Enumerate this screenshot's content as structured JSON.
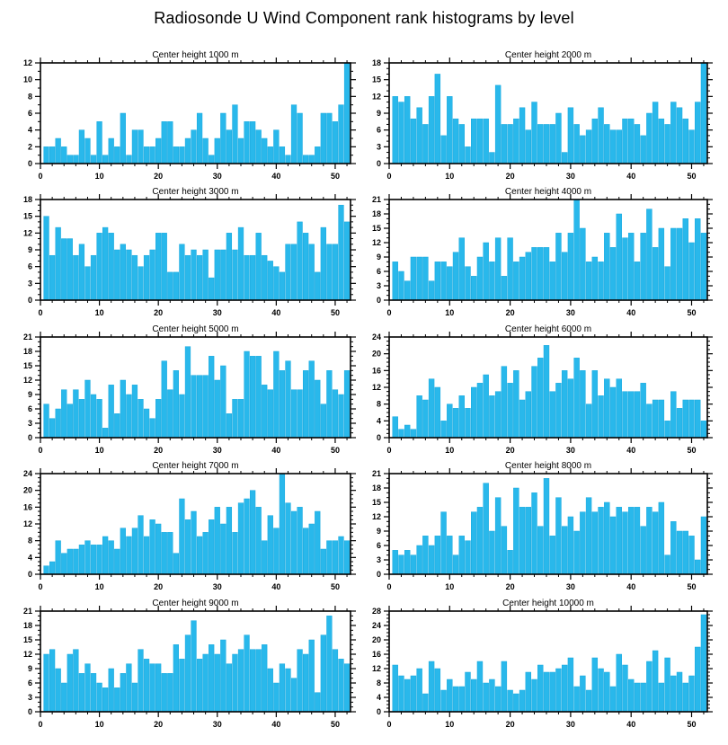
{
  "page_title": "Radiosonde U Wind Component rank histograms by level",
  "colors": {
    "bar": "#29B8EB",
    "bar_edge": "#18A8DE",
    "axis": "#000000",
    "background": "#FFFFFF"
  },
  "axis_style": {
    "x_major_ticks": [
      0,
      10,
      20,
      30,
      40,
      50
    ],
    "x_minor_step": 2,
    "y_minor_step": 1,
    "x_range": [
      0,
      52.6
    ],
    "grid": "off",
    "legend": "none"
  },
  "chart_data": [
    {
      "type": "bar",
      "title": "Center height 1000 m",
      "ylim": [
        0,
        12
      ],
      "ytick_step": 2,
      "x_ticks": [
        0,
        10,
        20,
        30,
        40,
        50
      ],
      "values": [
        2,
        2,
        3,
        2,
        1,
        1,
        4,
        3,
        1,
        5,
        1,
        3,
        2,
        6,
        1,
        4,
        4,
        2,
        2,
        3,
        5,
        5,
        2,
        2,
        3,
        4,
        6,
        3,
        1,
        3,
        6,
        4,
        7,
        3,
        5,
        5,
        4,
        3,
        2,
        4,
        2,
        1,
        7,
        6,
        1,
        1,
        2,
        6,
        6,
        5,
        7,
        12
      ]
    },
    {
      "type": "bar",
      "title": "Center height 2000 m",
      "ylim": [
        0,
        18
      ],
      "ytick_step": 3,
      "x_ticks": [
        0,
        10,
        20,
        30,
        40,
        50
      ],
      "values": [
        12,
        11,
        12,
        8,
        10,
        7,
        12,
        16,
        5,
        12,
        8,
        7,
        3,
        8,
        8,
        8,
        2,
        14,
        7,
        7,
        8,
        10,
        6,
        11,
        7,
        7,
        7,
        9,
        2,
        10,
        7,
        5,
        6,
        8,
        10,
        7,
        6,
        6,
        8,
        8,
        7,
        5,
        9,
        11,
        8,
        7,
        11,
        10,
        8,
        6,
        11,
        18
      ]
    },
    {
      "type": "bar",
      "title": "Center height 3000 m",
      "ylim": [
        0,
        18
      ],
      "ytick_step": 3,
      "x_ticks": [
        0,
        10,
        20,
        30,
        40,
        50
      ],
      "values": [
        15,
        8,
        13,
        11,
        11,
        8,
        10,
        6,
        8,
        12,
        13,
        12,
        9,
        10,
        9,
        8,
        6,
        8,
        9,
        12,
        12,
        5,
        5,
        10,
        8,
        9,
        8,
        9,
        4,
        9,
        9,
        12,
        9,
        13,
        8,
        8,
        12,
        8,
        7,
        6,
        5,
        10,
        10,
        14,
        12,
        10,
        5,
        13,
        10,
        10,
        17,
        14
      ]
    },
    {
      "type": "bar",
      "title": "Center height 4000 m",
      "ylim": [
        0,
        21
      ],
      "ytick_step": 3,
      "x_ticks": [
        0,
        10,
        20,
        30,
        40,
        50
      ],
      "values": [
        8,
        6,
        4,
        9,
        9,
        9,
        4,
        8,
        8,
        7,
        10,
        13,
        7,
        5,
        9,
        12,
        8,
        13,
        5,
        13,
        8,
        9,
        10,
        11,
        11,
        11,
        8,
        14,
        10,
        14,
        21,
        15,
        8,
        9,
        8,
        14,
        11,
        18,
        13,
        14,
        8,
        14,
        19,
        11,
        15,
        7,
        15,
        15,
        17,
        12,
        17,
        14
      ]
    },
    {
      "type": "bar",
      "title": "Center height 5000 m",
      "ylim": [
        0,
        21
      ],
      "ytick_step": 3,
      "x_ticks": [
        0,
        10,
        20,
        30,
        40,
        50
      ],
      "values": [
        7,
        4,
        6,
        10,
        7,
        10,
        8,
        12,
        9,
        8,
        2,
        11,
        5,
        12,
        9,
        11,
        8,
        6,
        4,
        8,
        16,
        10,
        14,
        9,
        19,
        13,
        13,
        13,
        17,
        12,
        15,
        5,
        8,
        8,
        18,
        17,
        17,
        11,
        10,
        18,
        14,
        16,
        10,
        10,
        14,
        16,
        12,
        7,
        14,
        10,
        9,
        14
      ]
    },
    {
      "type": "bar",
      "title": "Center height 6000 m",
      "ylim": [
        0,
        24
      ],
      "ytick_step": 4,
      "x_ticks": [
        0,
        10,
        20,
        30,
        40,
        50
      ],
      "values": [
        5,
        2,
        3,
        2,
        10,
        9,
        14,
        12,
        4,
        8,
        7,
        10,
        7,
        12,
        13,
        15,
        10,
        11,
        17,
        13,
        16,
        9,
        11,
        17,
        19,
        22,
        11,
        13,
        16,
        14,
        19,
        16,
        8,
        16,
        10,
        14,
        12,
        14,
        11,
        11,
        11,
        13,
        8,
        9,
        9,
        4,
        11,
        7,
        9,
        9,
        9,
        4
      ]
    },
    {
      "type": "bar",
      "title": "Center height 7000 m",
      "ylim": [
        0,
        24
      ],
      "ytick_step": 4,
      "x_ticks": [
        0,
        10,
        20,
        30,
        40,
        50
      ],
      "values": [
        2,
        3,
        8,
        5,
        6,
        6,
        7,
        8,
        7,
        7,
        9,
        8,
        6,
        11,
        9,
        11,
        14,
        9,
        13,
        12,
        10,
        10,
        5,
        18,
        13,
        15,
        9,
        10,
        13,
        16,
        12,
        16,
        10,
        17,
        18,
        20,
        16,
        8,
        14,
        11,
        24,
        17,
        15,
        16,
        11,
        12,
        15,
        6,
        8,
        8,
        9,
        8
      ]
    },
    {
      "type": "bar",
      "title": "Center height 8000 m",
      "ylim": [
        0,
        21
      ],
      "ytick_step": 3,
      "x_ticks": [
        0,
        10,
        20,
        30,
        40,
        50
      ],
      "values": [
        5,
        4,
        5,
        4,
        6,
        8,
        6,
        8,
        13,
        8,
        4,
        8,
        7,
        13,
        14,
        19,
        9,
        16,
        10,
        5,
        18,
        14,
        14,
        17,
        10,
        20,
        8,
        16,
        10,
        12,
        9,
        13,
        16,
        13,
        14,
        15,
        12,
        14,
        13,
        14,
        14,
        10,
        14,
        13,
        15,
        4,
        11,
        9,
        9,
        8,
        3,
        12
      ]
    },
    {
      "type": "bar",
      "title": "Center height 9000 m",
      "ylim": [
        0,
        21
      ],
      "ytick_step": 3,
      "x_ticks": [
        0,
        10,
        20,
        30,
        40,
        50
      ],
      "values": [
        12,
        13,
        9,
        6,
        12,
        13,
        8,
        10,
        8,
        6,
        5,
        9,
        5,
        8,
        10,
        6,
        13,
        11,
        10,
        10,
        8,
        8,
        14,
        11,
        16,
        19,
        11,
        12,
        14,
        12,
        15,
        10,
        12,
        13,
        16,
        13,
        13,
        14,
        9,
        6,
        10,
        9,
        7,
        13,
        12,
        15,
        4,
        16,
        20,
        13,
        11,
        10
      ]
    },
    {
      "type": "bar",
      "title": "Center height 10000 m",
      "ylim": [
        0,
        28
      ],
      "ytick_step": 4,
      "x_ticks": [
        0,
        10,
        20,
        30,
        40,
        50
      ],
      "values": [
        13,
        10,
        9,
        10,
        12,
        5,
        14,
        12,
        6,
        9,
        7,
        7,
        11,
        9,
        14,
        8,
        9,
        7,
        14,
        6,
        5,
        6,
        11,
        9,
        13,
        11,
        11,
        12,
        13,
        15,
        7,
        10,
        6,
        15,
        12,
        11,
        7,
        16,
        13,
        9,
        8,
        8,
        14,
        17,
        8,
        15,
        10,
        11,
        8,
        10,
        18,
        27
      ]
    }
  ]
}
